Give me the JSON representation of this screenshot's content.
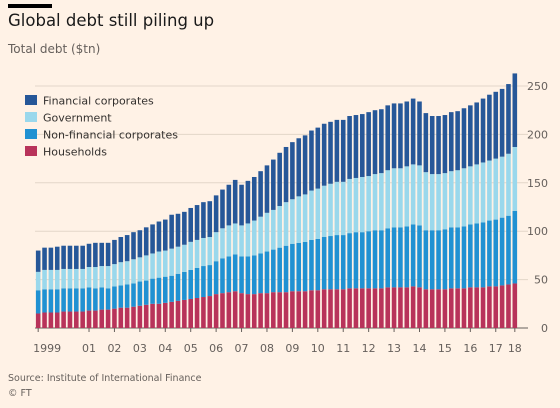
{
  "title": "Global debt still piling up",
  "subtitle": "Total debt ($tn)",
  "source": "Source: Institute of International Finance",
  "credit": "© FT",
  "chart_data": {
    "type": "bar",
    "stacked": true,
    "ylim": [
      0,
      250
    ],
    "yticks": [
      0,
      50,
      100,
      150,
      200,
      250
    ],
    "y_axis_side": "right",
    "grid": true,
    "legend_placement": "top-left",
    "x_tick_labels": [
      "1999",
      "01",
      "02",
      "03",
      "04",
      "05",
      "06",
      "07",
      "08",
      "09",
      "10",
      "11",
      "12",
      "13",
      "14",
      "15",
      "16",
      "17",
      "18"
    ],
    "x_tick_bar_index": [
      0,
      8,
      12,
      16,
      20,
      24,
      28,
      32,
      36,
      40,
      44,
      48,
      52,
      56,
      60,
      64,
      68,
      72,
      75
    ],
    "series": [
      {
        "name": "Households",
        "color": "#b8335a",
        "values": [
          15,
          16,
          16,
          16,
          17,
          17,
          17,
          17,
          18,
          18,
          19,
          19,
          20,
          21,
          21,
          22,
          23,
          24,
          25,
          25,
          26,
          27,
          28,
          29,
          30,
          31,
          32,
          33,
          35,
          36,
          37,
          38,
          36,
          35,
          35,
          36,
          36,
          37,
          37,
          37,
          38,
          38,
          38,
          39,
          39,
          40,
          40,
          40,
          40,
          41,
          41,
          41,
          41,
          41,
          41,
          42,
          42,
          42,
          42,
          43,
          42,
          40,
          40,
          40,
          40,
          41,
          41,
          41,
          42,
          42,
          42,
          43,
          43,
          44,
          45,
          46
        ]
      },
      {
        "name": "Non-financial corporates",
        "color": "#2091d2",
        "values": [
          24,
          24,
          24,
          24,
          24,
          24,
          24,
          24,
          24,
          23,
          23,
          22,
          23,
          23,
          24,
          24,
          25,
          25,
          26,
          27,
          27,
          27,
          28,
          29,
          30,
          31,
          32,
          32,
          34,
          36,
          37,
          38,
          38,
          39,
          40,
          41,
          43,
          44,
          46,
          48,
          49,
          50,
          51,
          52,
          53,
          54,
          55,
          56,
          56,
          57,
          58,
          58,
          59,
          60,
          60,
          61,
          62,
          62,
          63,
          64,
          64,
          61,
          61,
          61,
          62,
          63,
          63,
          64,
          65,
          66,
          67,
          68,
          69,
          70,
          71,
          75
        ]
      },
      {
        "name": "Government",
        "color": "#9ad8ec",
        "values": [
          19,
          20,
          20,
          20,
          20,
          20,
          20,
          20,
          21,
          22,
          22,
          23,
          23,
          24,
          24,
          25,
          25,
          26,
          26,
          27,
          27,
          28,
          28,
          28,
          29,
          29,
          29,
          29,
          30,
          31,
          32,
          32,
          32,
          34,
          36,
          38,
          40,
          41,
          43,
          45,
          46,
          48,
          49,
          51,
          52,
          53,
          54,
          55,
          55,
          56,
          56,
          57,
          57,
          58,
          59,
          60,
          61,
          61,
          62,
          62,
          62,
          60,
          58,
          58,
          58,
          58,
          59,
          60,
          60,
          61,
          62,
          62,
          63,
          63,
          64,
          66
        ]
      },
      {
        "name": "Financial corporates",
        "color": "#265798",
        "values": [
          22,
          23,
          23,
          24,
          24,
          24,
          24,
          24,
          24,
          25,
          24,
          24,
          25,
          26,
          27,
          28,
          28,
          29,
          30,
          31,
          32,
          35,
          34,
          34,
          35,
          36,
          37,
          37,
          38,
          40,
          42,
          45,
          42,
          44,
          45,
          47,
          49,
          52,
          55,
          57,
          59,
          60,
          61,
          62,
          63,
          64,
          64,
          64,
          64,
          65,
          65,
          65,
          66,
          66,
          66,
          67,
          67,
          67,
          67,
          68,
          66,
          61,
          60,
          60,
          60,
          61,
          61,
          62,
          63,
          64,
          66,
          68,
          69,
          70,
          72,
          76
        ]
      }
    ]
  }
}
